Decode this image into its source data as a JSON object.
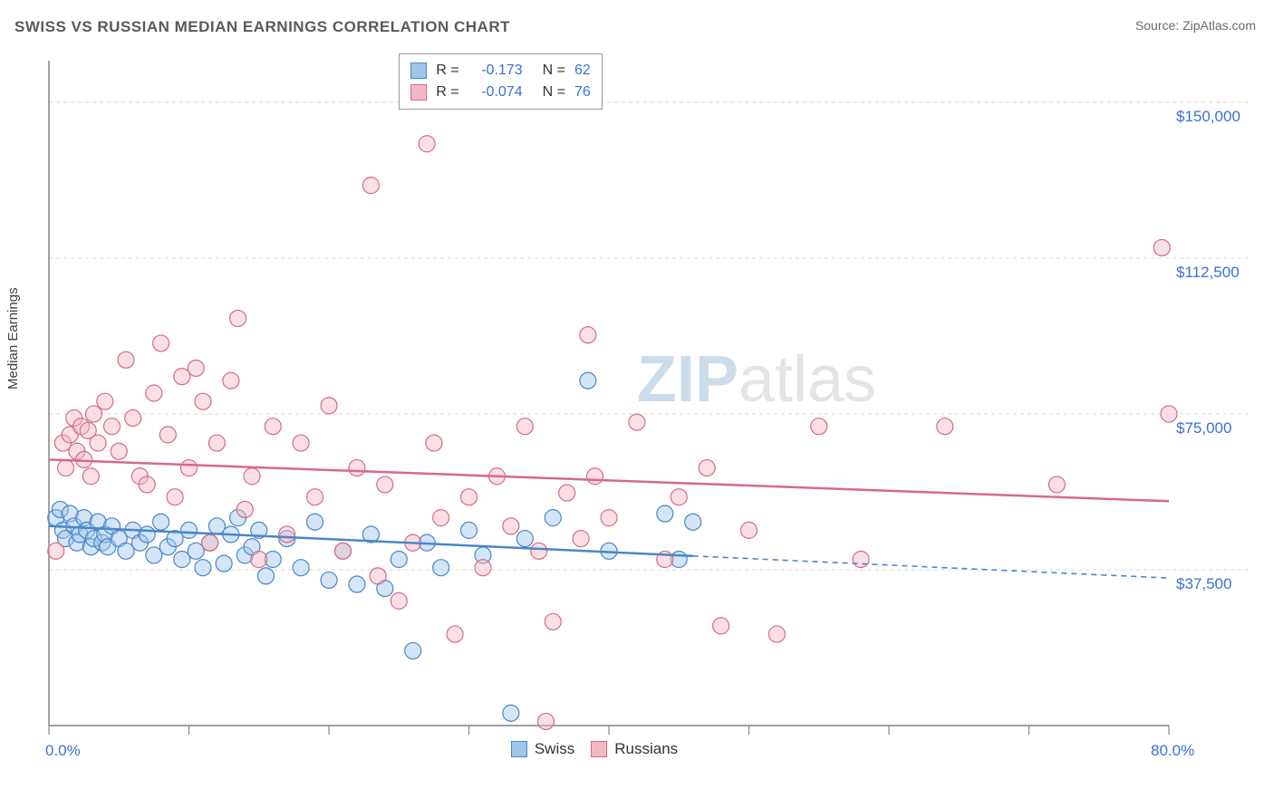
{
  "title": "SWISS VS RUSSIAN MEDIAN EARNINGS CORRELATION CHART",
  "source_prefix": "Source: ",
  "source_name": "ZipAtlas.com",
  "y_axis_label": "Median Earnings",
  "watermark": {
    "part1": "ZIP",
    "part2": "atlas",
    "color1": "#a6c0da",
    "color2": "#cfcfcf",
    "fontsize": 72
  },
  "chart": {
    "type": "scatter",
    "xlim": [
      0,
      80
    ],
    "ylim": [
      0,
      160000
    ],
    "x_ticks": [
      0,
      10,
      20,
      30,
      40,
      50,
      60,
      70,
      80
    ],
    "x_tick_labels_shown": {
      "0": "0.0%",
      "80": "80.0%"
    },
    "y_gridlines": [
      37500,
      75000,
      112500,
      150000
    ],
    "y_grid_labels": [
      "$37,500",
      "$75,000",
      "$112,500",
      "$150,000"
    ],
    "background_color": "#ffffff",
    "grid_color": "#d7d7d7",
    "axis_color": "#666666",
    "tick_color": "#888888",
    "label_color_blue": "#3b6fd6",
    "marker_radius": 9,
    "marker_border_width": 1.2,
    "marker_fill_opacity": 0.45,
    "trend_line_width": 2.5,
    "trend_dash": "6,5",
    "series": [
      {
        "name": "Swiss",
        "color_fill": "#9ec5ec",
        "color_stroke": "#4a86c7",
        "R": -0.173,
        "N": 62,
        "trend": {
          "y_at_x0": 48000,
          "y_at_x80": 35500,
          "solid_until_x": 46
        },
        "points": [
          [
            0.5,
            50000
          ],
          [
            0.8,
            52000
          ],
          [
            1.0,
            47000
          ],
          [
            1.2,
            45000
          ],
          [
            1.5,
            51000
          ],
          [
            1.8,
            48000
          ],
          [
            2.0,
            44000
          ],
          [
            2.2,
            46000
          ],
          [
            2.5,
            50000
          ],
          [
            2.7,
            47000
          ],
          [
            3.0,
            43000
          ],
          [
            3.2,
            45000
          ],
          [
            3.5,
            49000
          ],
          [
            3.8,
            44000
          ],
          [
            4.0,
            46000
          ],
          [
            4.2,
            43000
          ],
          [
            4.5,
            48000
          ],
          [
            5.0,
            45000
          ],
          [
            5.5,
            42000
          ],
          [
            6.0,
            47000
          ],
          [
            6.5,
            44000
          ],
          [
            7.0,
            46000
          ],
          [
            7.5,
            41000
          ],
          [
            8.0,
            49000
          ],
          [
            8.5,
            43000
          ],
          [
            9.0,
            45000
          ],
          [
            9.5,
            40000
          ],
          [
            10.0,
            47000
          ],
          [
            10.5,
            42000
          ],
          [
            11.0,
            38000
          ],
          [
            11.5,
            44000
          ],
          [
            12.0,
            48000
          ],
          [
            12.5,
            39000
          ],
          [
            13.0,
            46000
          ],
          [
            13.5,
            50000
          ],
          [
            14.0,
            41000
          ],
          [
            14.5,
            43000
          ],
          [
            15.0,
            47000
          ],
          [
            15.5,
            36000
          ],
          [
            16.0,
            40000
          ],
          [
            17.0,
            45000
          ],
          [
            18.0,
            38000
          ],
          [
            19.0,
            49000
          ],
          [
            20.0,
            35000
          ],
          [
            21.0,
            42000
          ],
          [
            22.0,
            34000
          ],
          [
            23.0,
            46000
          ],
          [
            24.0,
            33000
          ],
          [
            25.0,
            40000
          ],
          [
            26.0,
            18000
          ],
          [
            27.0,
            44000
          ],
          [
            28.0,
            38000
          ],
          [
            30.0,
            47000
          ],
          [
            31.0,
            41000
          ],
          [
            33.0,
            3000
          ],
          [
            34.0,
            45000
          ],
          [
            36.0,
            50000
          ],
          [
            38.5,
            83000
          ],
          [
            40.0,
            42000
          ],
          [
            44.0,
            51000
          ],
          [
            45.0,
            40000
          ],
          [
            46.0,
            49000
          ]
        ]
      },
      {
        "name": "Russians",
        "color_fill": "#f4b7c4",
        "color_stroke": "#d76a86",
        "R": -0.074,
        "N": 76,
        "trend": {
          "y_at_x0": 64000,
          "y_at_x80": 54000,
          "solid_until_x": 80
        },
        "points": [
          [
            0.5,
            42000
          ],
          [
            1.0,
            68000
          ],
          [
            1.2,
            62000
          ],
          [
            1.5,
            70000
          ],
          [
            1.8,
            74000
          ],
          [
            2.0,
            66000
          ],
          [
            2.3,
            72000
          ],
          [
            2.5,
            64000
          ],
          [
            2.8,
            71000
          ],
          [
            3.0,
            60000
          ],
          [
            3.2,
            75000
          ],
          [
            3.5,
            68000
          ],
          [
            4.0,
            78000
          ],
          [
            4.5,
            72000
          ],
          [
            5.0,
            66000
          ],
          [
            5.5,
            88000
          ],
          [
            6.0,
            74000
          ],
          [
            6.5,
            60000
          ],
          [
            7.0,
            58000
          ],
          [
            7.5,
            80000
          ],
          [
            8.0,
            92000
          ],
          [
            8.5,
            70000
          ],
          [
            9.0,
            55000
          ],
          [
            9.5,
            84000
          ],
          [
            10.0,
            62000
          ],
          [
            10.5,
            86000
          ],
          [
            11.0,
            78000
          ],
          [
            11.5,
            44000
          ],
          [
            12.0,
            68000
          ],
          [
            13.0,
            83000
          ],
          [
            13.5,
            98000
          ],
          [
            14.0,
            52000
          ],
          [
            14.5,
            60000
          ],
          [
            15.0,
            40000
          ],
          [
            16.0,
            72000
          ],
          [
            17.0,
            46000
          ],
          [
            18.0,
            68000
          ],
          [
            19.0,
            55000
          ],
          [
            20.0,
            77000
          ],
          [
            21.0,
            42000
          ],
          [
            22.0,
            62000
          ],
          [
            23.0,
            130000
          ],
          [
            23.5,
            36000
          ],
          [
            24.0,
            58000
          ],
          [
            25.0,
            30000
          ],
          [
            26.0,
            44000
          ],
          [
            27.0,
            140000
          ],
          [
            27.5,
            68000
          ],
          [
            28.0,
            50000
          ],
          [
            29.0,
            22000
          ],
          [
            30.0,
            55000
          ],
          [
            31.0,
            38000
          ],
          [
            32.0,
            60000
          ],
          [
            33.0,
            48000
          ],
          [
            34.0,
            72000
          ],
          [
            35.0,
            42000
          ],
          [
            35.5,
            1000
          ],
          [
            36.0,
            25000
          ],
          [
            37.0,
            56000
          ],
          [
            38.0,
            45000
          ],
          [
            38.5,
            94000
          ],
          [
            39.0,
            60000
          ],
          [
            40.0,
            50000
          ],
          [
            42.0,
            73000
          ],
          [
            44.0,
            40000
          ],
          [
            45.0,
            55000
          ],
          [
            47.0,
            62000
          ],
          [
            48.0,
            24000
          ],
          [
            50.0,
            47000
          ],
          [
            52.0,
            22000
          ],
          [
            55.0,
            72000
          ],
          [
            58.0,
            40000
          ],
          [
            64.0,
            72000
          ],
          [
            72.0,
            58000
          ],
          [
            79.5,
            115000
          ],
          [
            80.0,
            75000
          ]
        ]
      }
    ]
  },
  "legend_top": {
    "r_label": "R =",
    "n_label": "N =",
    "rows": [
      {
        "color_fill": "#9ec5ec",
        "color_stroke": "#4a86c7",
        "r": "-0.173",
        "n": "62"
      },
      {
        "color_fill": "#f4b7c4",
        "color_stroke": "#d76a86",
        "r": "-0.074",
        "n": "76"
      }
    ]
  },
  "legend_bottom": [
    {
      "label": "Swiss",
      "color_fill": "#9ec5ec",
      "color_stroke": "#4a86c7"
    },
    {
      "label": "Russians",
      "color_fill": "#f4b7c4",
      "color_stroke": "#d76a86"
    }
  ]
}
